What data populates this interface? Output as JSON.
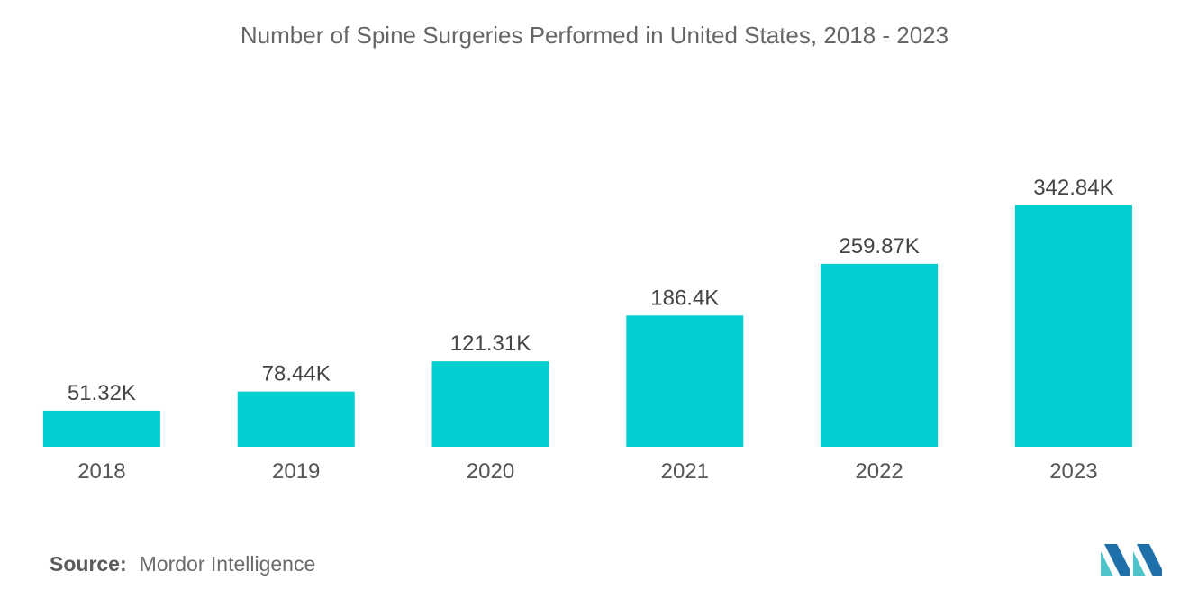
{
  "chart_data": {
    "type": "bar",
    "title": "Number of Spine Surgeries Performed in United States, 2018 - 2023",
    "categories": [
      "2018",
      "2019",
      "2020",
      "2021",
      "2022",
      "2023"
    ],
    "values": [
      51.32,
      78.44,
      121.31,
      186.4,
      259.87,
      342.84
    ],
    "data_labels": [
      "51.32K",
      "78.44K",
      "121.31K",
      "186.4K",
      "259.87K",
      "342.84K"
    ],
    "xlabel": "",
    "ylabel": "",
    "ylim": [
      0,
      342.84
    ],
    "grid": false,
    "legend": "none"
  },
  "colors": {
    "bar": "#00CED1",
    "logo_dark": "#1F6FA8",
    "logo_light": "#4FC3CC"
  },
  "footer": {
    "source_label": "Source:",
    "source_text": "Mordor Intelligence"
  },
  "logo": {
    "icon": "mordor-intelligence-logo-icon"
  }
}
